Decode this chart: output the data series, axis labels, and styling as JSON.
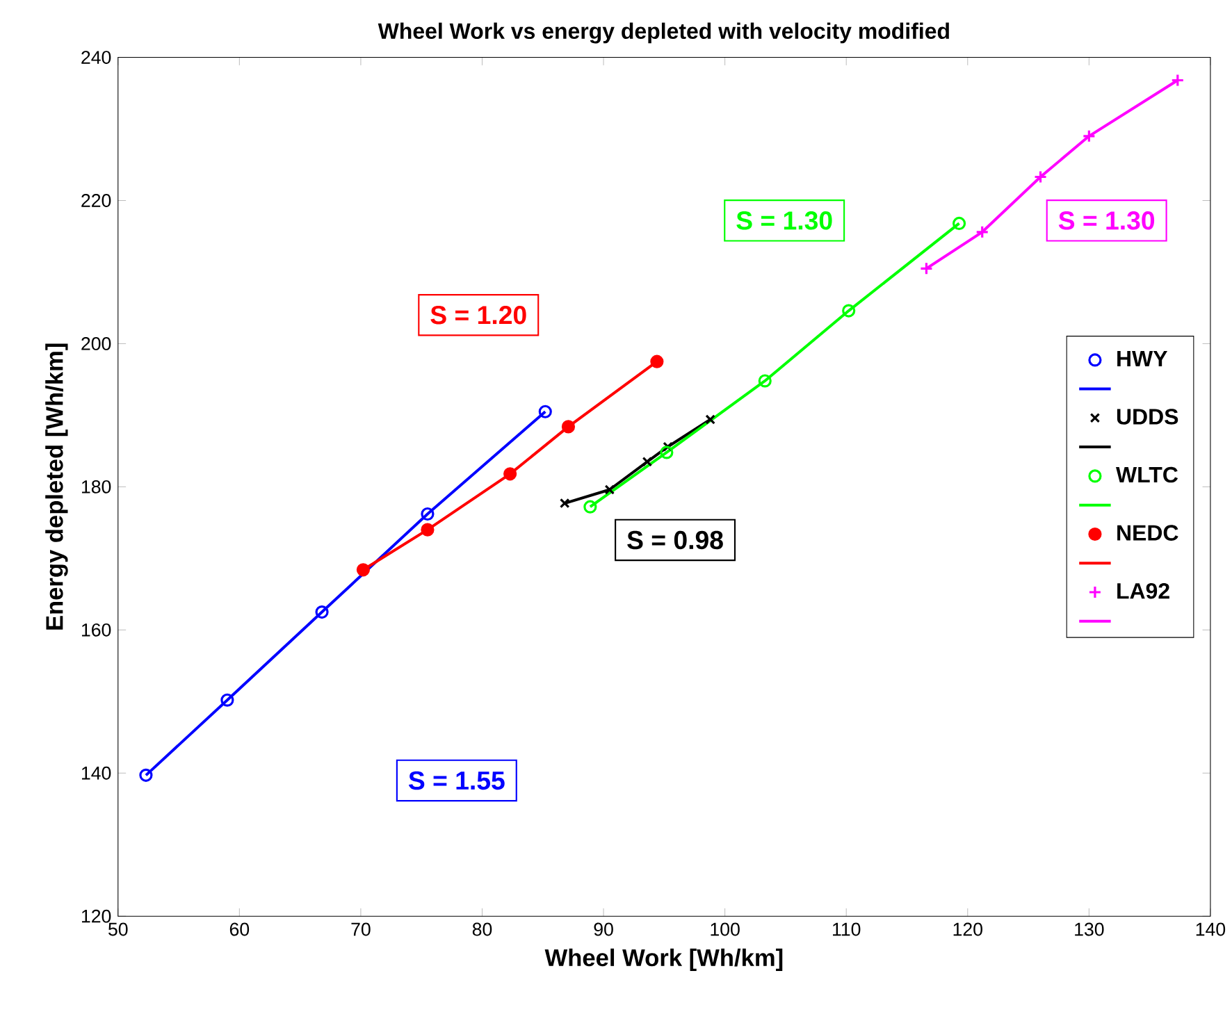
{
  "chart_data": {
    "type": "scatter",
    "title": "Wheel Work vs energy depleted with velocity modified",
    "xlabel": "Wheel Work [Wh/km]",
    "ylabel": "Energy depleted [Wh/km]",
    "xlim": [
      50,
      140
    ],
    "xticks": [
      50,
      60,
      70,
      80,
      90,
      100,
      110,
      120,
      130,
      140
    ],
    "ylim": [
      120,
      240
    ],
    "yticks": [
      120,
      140,
      160,
      180,
      200,
      220,
      240
    ],
    "legend": "right",
    "grid": false,
    "series": [
      {
        "name": "HWY",
        "marker": "circle",
        "color": "#0000ff",
        "x": [
          52.3,
          59,
          66.8,
          75.5,
          85.2
        ],
        "values": [
          139.7,
          150.2,
          162.5,
          176.2,
          190.5
        ]
      },
      {
        "type": "line",
        "color": "#0000ff",
        "x": [
          52.3,
          59,
          66.8,
          75.5,
          85.2
        ],
        "values": [
          139.7,
          150.2,
          162.5,
          176.2,
          190.5
        ]
      },
      {
        "name": "UDDS",
        "marker": "cross",
        "color": "#000000",
        "x": [
          86.8,
          90.5,
          93.6,
          95.3,
          98.8
        ],
        "values": [
          177.7,
          179.6,
          183.5,
          185.6,
          189.4
        ]
      },
      {
        "type": "line",
        "color": "#000000",
        "x": [
          86.8,
          90.5,
          93.6,
          95.3,
          98.8
        ],
        "values": [
          177.7,
          179.6,
          183.5,
          185.6,
          189.4
        ]
      },
      {
        "name": "WLTC",
        "marker": "circle",
        "color": "#00ff00",
        "x": [
          88.9,
          95.2,
          103.3,
          110.2,
          119.3
        ],
        "values": [
          177.2,
          184.8,
          194.8,
          204.6,
          216.8
        ]
      },
      {
        "type": "line",
        "color": "#00ff00",
        "x": [
          88.9,
          95.2,
          103.3,
          110.2,
          119.3
        ],
        "values": [
          177.2,
          184.8,
          194.8,
          204.6,
          216.8
        ]
      },
      {
        "name": "NEDC",
        "color": "#ff0000",
        "x": [
          70.2,
          75.5,
          82.3,
          87.1,
          94.4
        ],
        "values": [
          168.4,
          174,
          181.8,
          188.4,
          197.5
        ]
      },
      {
        "type": "line",
        "color": "#ff0000",
        "x": [
          70.2,
          75.5,
          82.3,
          87.1,
          94.4
        ],
        "values": [
          168.4,
          174,
          181.8,
          188.4,
          197.5
        ]
      },
      {
        "name": "LA92",
        "marker": "cross",
        "color": "#ff00ff",
        "x": [
          116.6,
          121.2,
          126,
          130,
          137.3
        ],
        "values": [
          210.5,
          215.6,
          223.3,
          229,
          236.8
        ]
      },
      {
        "type": "line",
        "color": "#ff00ff",
        "x": [
          116.6,
          121.2,
          126,
          130,
          137.3
        ],
        "values": [
          210.5,
          215.6,
          223.3,
          229,
          236.8
        ]
      }
    ],
    "annotations": [
      "S = 1.55",
      "S = 0.98",
      "S = 1.30",
      "S = 1.20",
      "S = 1.30"
    ]
  }
}
